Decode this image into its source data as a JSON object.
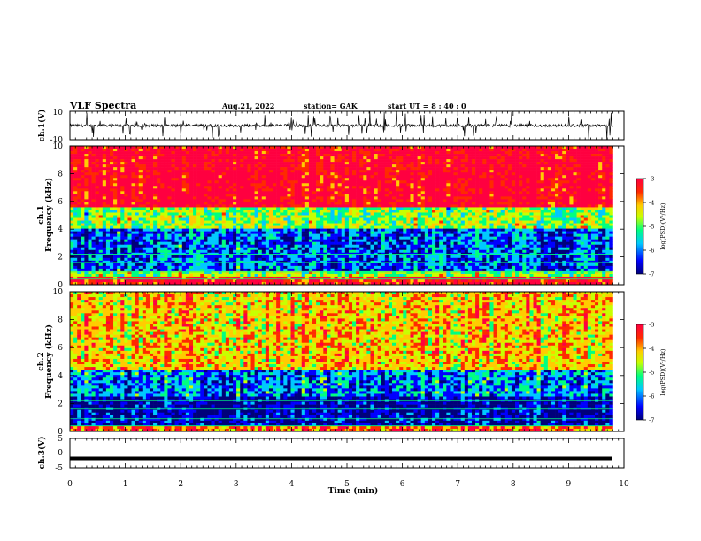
{
  "header": {
    "title": "VLF Spectra",
    "date": "Aug.21, 2022",
    "station": "station= GAK",
    "start_ut": "start  UT =   8 : 40 : 0"
  },
  "colors": {
    "colormap": [
      "#00007a",
      "#0000ff",
      "#00c8ff",
      "#00ff80",
      "#c8ff00",
      "#ffcc00",
      "#ff2a00",
      "#ff0040"
    ],
    "background": "#ffffff"
  },
  "chart_data": [
    {
      "type": "line",
      "panel": "ch1-waveform",
      "ylabel": "ch.1(V)",
      "ylim": [
        -10,
        10
      ],
      "yticks": [
        "10",
        "-10"
      ],
      "xlim": [
        0,
        10
      ],
      "description_values": {
        "baseline": 0.0,
        "typical_amplitude": 2.0,
        "max_spike": 10.0
      }
    },
    {
      "type": "heatmap",
      "panel": "ch1-spectrogram",
      "ylabel": "ch.1\nFrequency (kHz)",
      "ylim": [
        0,
        10
      ],
      "yticks": [
        "0",
        "2",
        "4",
        "6",
        "8",
        "10"
      ],
      "xlim": [
        0,
        9.8
      ],
      "colorbar": {
        "label": "log(PSD)(V²/Hz)",
        "range": [
          -7,
          -3
        ],
        "ticks": [
          "-3",
          "-4",
          "-5",
          "-6",
          "-7"
        ]
      },
      "bands_khz": [
        {
          "from": 0,
          "to": 0.5,
          "log_psd": -3.5
        },
        {
          "from": 0.5,
          "to": 1.0,
          "log_psd": -5.0
        },
        {
          "from": 1.0,
          "to": 4.0,
          "log_psd": -6.2
        },
        {
          "from": 4.0,
          "to": 5.5,
          "log_psd": -5.0
        },
        {
          "from": 5.5,
          "to": 10,
          "log_psd": -3.3
        }
      ]
    },
    {
      "type": "heatmap",
      "panel": "ch2-spectrogram",
      "ylabel": "ch.2\nFrequency (kHz)",
      "ylim": [
        0,
        10
      ],
      "yticks": [
        "0",
        "2",
        "4",
        "6",
        "8",
        "10"
      ],
      "xlim": [
        0,
        9.8
      ],
      "colorbar": {
        "label": "log(PSD)(V²/Hz)",
        "range": [
          -7,
          -3
        ],
        "ticks": [
          "-3",
          "-4",
          "-5",
          "-6",
          "-7"
        ]
      },
      "bands_khz": [
        {
          "from": 0,
          "to": 0.3,
          "log_psd": -4.0
        },
        {
          "from": 0.3,
          "to": 2.5,
          "log_psd": -6.7
        },
        {
          "from": 2.5,
          "to": 4.5,
          "log_psd": -6.0
        },
        {
          "from": 4.5,
          "to": 10,
          "log_psd": -4.4
        }
      ]
    },
    {
      "type": "line",
      "panel": "ch3-waveform",
      "ylabel": "ch.3(V)",
      "ylim": [
        -5,
        5
      ],
      "yticks": [
        "5",
        "0",
        "-5"
      ],
      "xlim": [
        0,
        10
      ],
      "values_constant": -1.8
    }
  ],
  "xaxis": {
    "label": "Time  (min)",
    "ticks": [
      "0",
      "1",
      "2",
      "3",
      "4",
      "5",
      "6",
      "7",
      "8",
      "9",
      "10"
    ]
  }
}
